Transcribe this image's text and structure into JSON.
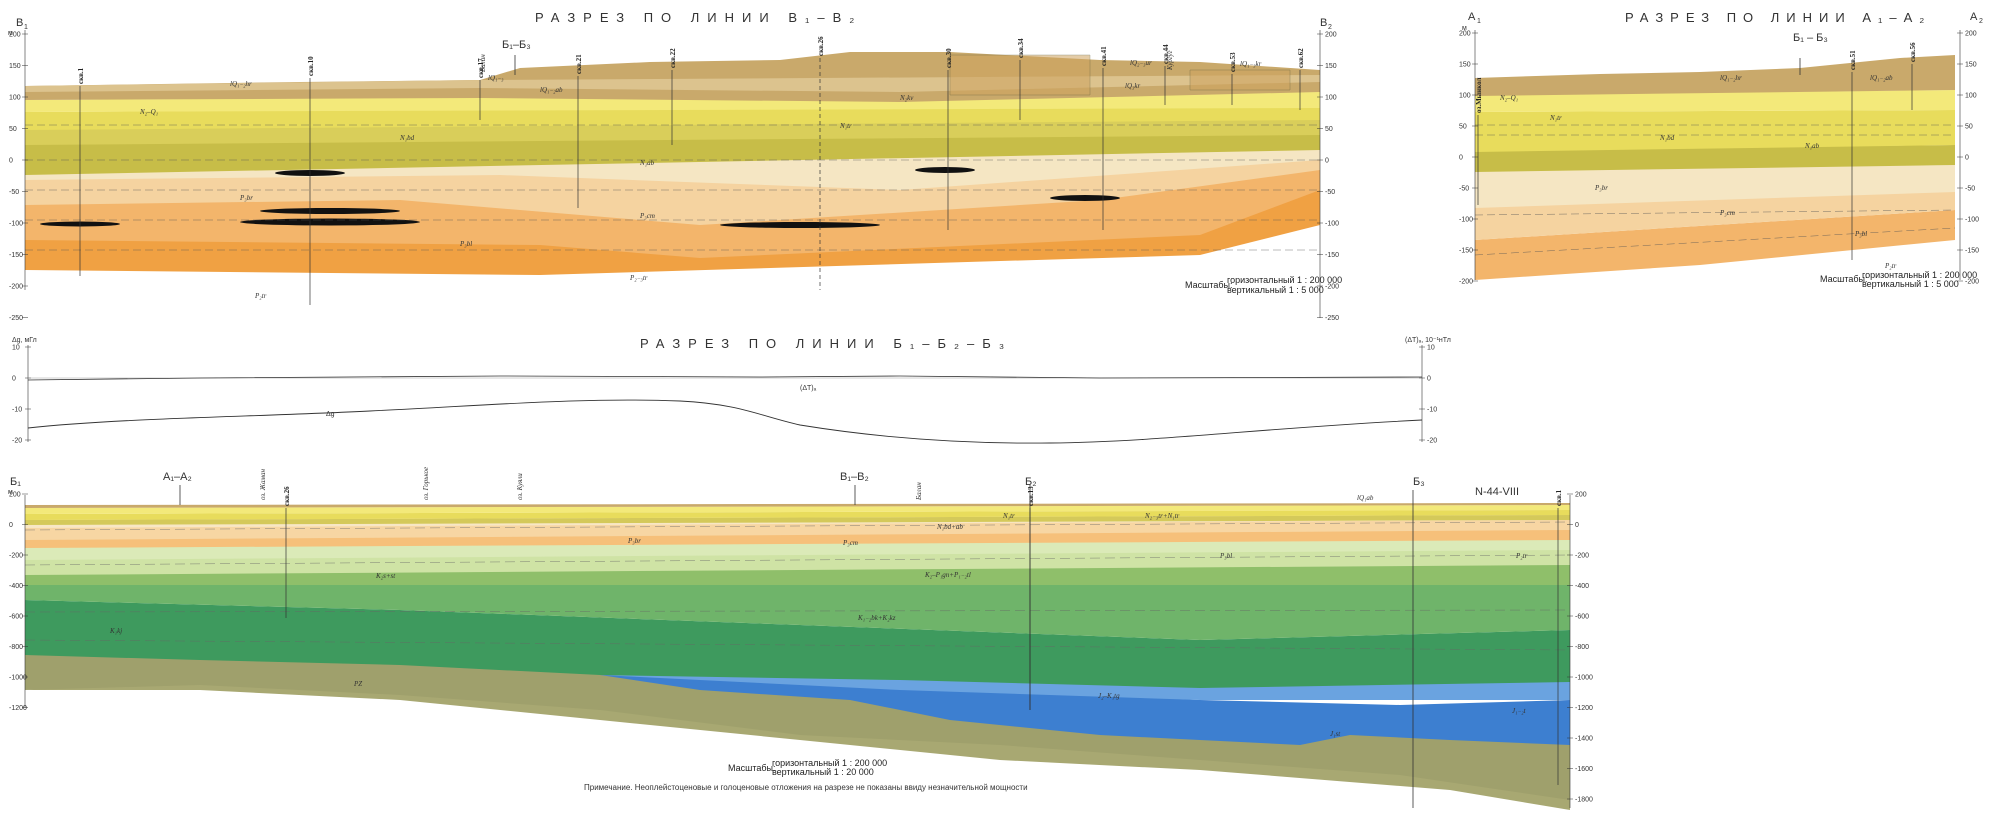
{
  "section_b": {
    "left_end": "В",
    "left_sub": "1",
    "right_end": "В",
    "right_sub": "2",
    "title": "РАЗРЕЗ ПО ЛИНИИ В₁–В₂",
    "axis_unit": "м",
    "ticks": [
      "200",
      "150",
      "100",
      "50",
      "0",
      "-50",
      "-100",
      "-150",
      "-200",
      "-250"
    ],
    "crossing": "Б₁–Б₃",
    "wells": [
      "скв.1",
      "скв.10",
      "скв.17",
      "скв.21",
      "скв.22",
      "скв.26",
      "скв.30",
      "скв.34",
      "скв.41",
      "скв.44",
      "скв.53",
      "скв.62"
    ],
    "place_labels": [
      "Балан",
      "Кургуг"
    ],
    "layer_labels": [
      "lQ₁₋₂hr",
      "lQ₁₋₂ab",
      "lQ₁₋₃",
      "lQ₃kr",
      "N₂–Q₁",
      "N₂kv",
      "N₁bd",
      "N₁ab",
      "N₁tr",
      "P₃br",
      "P₃cm",
      "P₃bl",
      "P₂₋₃tr",
      "P₂tr",
      "lQ₂₋₃ur",
      "lQ₁₋₃kr"
    ],
    "scale_label": "Масштабы:",
    "scale_h": "горизонтальный 1 : 200 000",
    "scale_v": "вертикальный 1 : 5 000"
  },
  "section_a": {
    "left_end": "А",
    "left_sub": "1",
    "right_end": "А",
    "right_sub": "2",
    "title": "РАЗРЕЗ ПО ЛИНИИ А₁–А₂",
    "axis_unit": "м",
    "ticks": [
      "200",
      "150",
      "100",
      "50",
      "0",
      "-50",
      "-100",
      "-150",
      "-200"
    ],
    "crossing": "Б₁ – Б₃",
    "wells": [
      "оз.Мынкол",
      "скв.51",
      "скв.56"
    ],
    "layer_labels": [
      "lQ₁₋₂hr",
      "lQ₁₋₂ab",
      "N₂–Q₁",
      "N₁tr",
      "N₁bd",
      "N₁ab",
      "P₃br",
      "P₃cm",
      "P₃bl",
      "P₂tr"
    ],
    "scale_label": "Масштабы:",
    "scale_h": "горизонтальный 1 : 200 000",
    "scale_v": "вертикальный 1 : 5 000"
  },
  "geophys": {
    "title": "РАЗРЕЗ ПО ЛИНИИ Б₁–Б₂–Б₃",
    "left_unit": "Δg, мГл",
    "right_unit": "(ΔT)ₐ, 10⁻¹нТл",
    "left_ticks": [
      "10",
      "0",
      "-10",
      "-20"
    ],
    "right_ticks": [
      "10",
      "0",
      "-10",
      "-20"
    ],
    "curve_t": "(ΔT)ₐ",
    "curve_g": "Δg"
  },
  "section_b3": {
    "left_end": "Б₁",
    "mid_end": "Б₂",
    "right_end": "Б₃",
    "crossing_a": "А₁–А₂",
    "crossing_b": "В₁–В₂",
    "sheet": "N-44-VIII",
    "axis_unit": "м",
    "left_ticks": [
      "200",
      "0",
      "-200",
      "-400",
      "-600",
      "-800",
      "-1000",
      "-1200"
    ],
    "right_ticks": [
      "200",
      "0",
      "-200",
      "-400",
      "-600",
      "-800",
      "-1000",
      "-1200",
      "-1400",
      "-1600",
      "-1800"
    ],
    "place_labels": [
      "оз. Жаман",
      "оз. Горькое",
      "оз. Куяли",
      "Балан"
    ],
    "wells": [
      "скв.26",
      "скв.13",
      "скв.1"
    ],
    "layer_labels": [
      "lQ₁ab",
      "N₁bd+ab",
      "N₁tr",
      "N₂₋₃tr+N₁tr",
      "P₃br",
      "P₃cm",
      "P₃bl",
      "P₂tr",
      "K₂s+st",
      "K₂–P₁gn+P₁₋₂tl",
      "K₁₋₂bk+K₂kz",
      "K₁kj",
      "PZ",
      "J₂–K₁tg",
      "J₁₋₂t",
      "J₁st"
    ],
    "scale_label": "Масштабы:",
    "scale_h": "горизонтальный 1 : 200 000",
    "scale_v": "вертикальный 1 : 20 000",
    "note": "Примечание. Неоплейстоценовые и голоценовые отложения на разрезе не показаны ввиду незначительной мощности"
  },
  "colors": {
    "brown_top": "#c9a96b",
    "yellow_bright": "#f3e97a",
    "yellow": "#e8dc5c",
    "olive": "#c7bd48",
    "cream": "#f5e6c3",
    "peach": "#f5d3a0",
    "orange": "#f3b56b",
    "orange_deep": "#f0a143",
    "light_green": "#cfe3a5",
    "green": "#8fbf6a",
    "dark_green": "#3e9a5e",
    "khaki": "#a8a872",
    "blue": "#3d7fd0",
    "blue_light": "#6aa3e0"
  }
}
